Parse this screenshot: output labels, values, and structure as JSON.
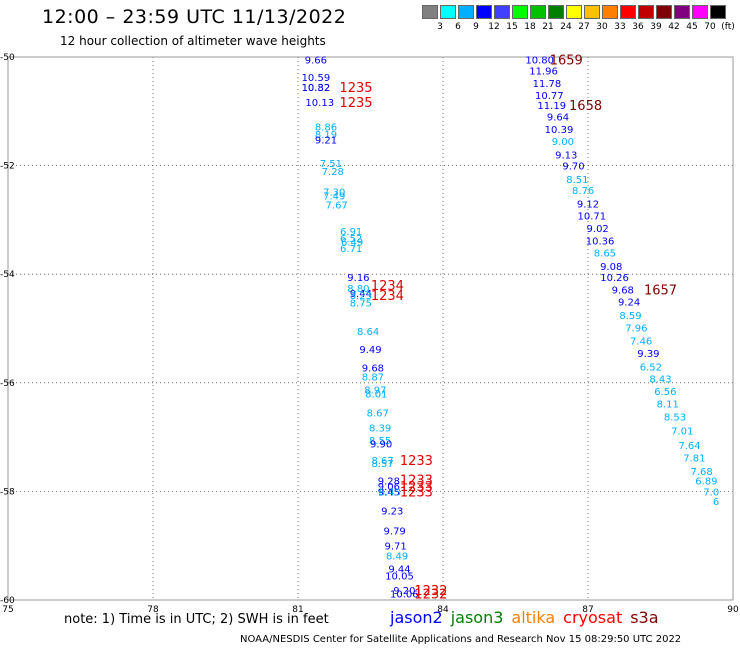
{
  "header": {
    "title": "12:00 – 23:59 UTC 11/13/2022",
    "subtitle": "12 hour collection of altimeter wave heights"
  },
  "colorbar": {
    "unit": "(ft)",
    "colors": [
      "#808080",
      "#00ffff",
      "#00b0ff",
      "#0000ff",
      "#4040ff",
      "#00ff00",
      "#00c000",
      "#008000",
      "#ffff00",
      "#ffc000",
      "#ff8000",
      "#ff0000",
      "#c00000",
      "#800000",
      "#800080",
      "#ff00ff",
      "#000000"
    ],
    "labels": [
      "3",
      "6",
      "9",
      "12",
      "15",
      "18",
      "21",
      "24",
      "27",
      "30",
      "33",
      "36",
      "39",
      "42",
      "45",
      "70"
    ]
  },
  "axes": {
    "x_ticks": [
      "75",
      "78",
      "81",
      "84",
      "87",
      "90"
    ],
    "y_ticks": [
      "-50",
      "-52",
      "-54",
      "-56",
      "-58",
      "-60"
    ]
  },
  "observations": [
    {
      "text": "9.66",
      "lon": 81.37,
      "lat": -50.05,
      "c": "#0000ff"
    },
    {
      "text": "10.59",
      "lon": 81.37,
      "lat": -50.37,
      "c": "#0000ff"
    },
    {
      "text": "10.32",
      "lon": 81.37,
      "lat": -50.55,
      "c": "#0000ff"
    },
    {
      "text": "10.82",
      "lon": 81.37,
      "lat": -50.55,
      "c": "#0000ff"
    },
    {
      "text": "10.13",
      "lon": 81.45,
      "lat": -50.83,
      "c": "#0000ff"
    },
    {
      "text": "8.86",
      "lon": 81.58,
      "lat": -51.28,
      "c": "#00b0ff"
    },
    {
      "text": "8.19",
      "lon": 81.58,
      "lat": -51.42,
      "c": "#00b0ff"
    },
    {
      "text": "9.21",
      "lon": 81.58,
      "lat": -51.52,
      "c": "#0000ff"
    },
    {
      "text": "7.51",
      "lon": 81.68,
      "lat": -51.95,
      "c": "#00b0ff"
    },
    {
      "text": "7.28",
      "lon": 81.72,
      "lat": -52.1,
      "c": "#00b0ff"
    },
    {
      "text": "7.30",
      "lon": 81.75,
      "lat": -52.48,
      "c": "#00b0ff"
    },
    {
      "text": "7.49",
      "lon": 81.75,
      "lat": -52.55,
      "c": "#00b0ff"
    },
    {
      "text": "7.67",
      "lon": 81.8,
      "lat": -52.72,
      "c": "#00b0ff"
    },
    {
      "text": "6.91",
      "lon": 82.1,
      "lat": -53.2,
      "c": "#00b0ff"
    },
    {
      "text": "6.52",
      "lon": 82.1,
      "lat": -53.33,
      "c": "#00b0ff"
    },
    {
      "text": "6.49",
      "lon": 82.12,
      "lat": -53.4,
      "c": "#00b0ff"
    },
    {
      "text": "6.71",
      "lon": 82.1,
      "lat": -53.52,
      "c": "#00b0ff"
    },
    {
      "text": "9.16",
      "lon": 82.25,
      "lat": -54.05,
      "c": "#0000ff"
    },
    {
      "text": "8.80",
      "lon": 82.25,
      "lat": -54.25,
      "c": "#00b0ff"
    },
    {
      "text": "9.44",
      "lon": 82.3,
      "lat": -54.35,
      "c": "#0000ff"
    },
    {
      "text": "8.23",
      "lon": 82.3,
      "lat": -54.38,
      "c": "#00b0ff"
    },
    {
      "text": "8.75",
      "lon": 82.3,
      "lat": -54.52,
      "c": "#00b0ff"
    },
    {
      "text": "8.64",
      "lon": 82.45,
      "lat": -55.05,
      "c": "#00b0ff"
    },
    {
      "text": "9.49",
      "lon": 82.5,
      "lat": -55.38,
      "c": "#0000ff"
    },
    {
      "text": "9.68",
      "lon": 82.55,
      "lat": -55.72,
      "c": "#0000ff"
    },
    {
      "text": "8.87",
      "lon": 82.55,
      "lat": -55.88,
      "c": "#00b0ff"
    },
    {
      "text": "8.97",
      "lon": 82.6,
      "lat": -56.12,
      "c": "#00b0ff"
    },
    {
      "text": "8.01",
      "lon": 82.62,
      "lat": -56.2,
      "c": "#00b0ff"
    },
    {
      "text": "8.67",
      "lon": 82.65,
      "lat": -56.55,
      "c": "#00b0ff"
    },
    {
      "text": "8.39",
      "lon": 82.7,
      "lat": -56.82,
      "c": "#00b0ff"
    },
    {
      "text": "8.55",
      "lon": 82.7,
      "lat": -57.05,
      "c": "#00b0ff"
    },
    {
      "text": "9.90",
      "lon": 82.72,
      "lat": -57.12,
      "c": "#0000ff"
    },
    {
      "text": "8.67",
      "lon": 82.75,
      "lat": -57.42,
      "c": "#00b0ff"
    },
    {
      "text": "8.57",
      "lon": 82.75,
      "lat": -57.48,
      "c": "#00b0ff"
    },
    {
      "text": "9.28",
      "lon": 82.88,
      "lat": -57.8,
      "c": "#0000ff"
    },
    {
      "text": "9.06",
      "lon": 82.88,
      "lat": -57.9,
      "c": "#0000ff"
    },
    {
      "text": "9.45",
      "lon": 82.88,
      "lat": -58.0,
      "c": "#0000ff"
    },
    {
      "text": "8.43",
      "lon": 82.9,
      "lat": -58.0,
      "c": "#00b0ff"
    },
    {
      "text": "9.23",
      "lon": 82.95,
      "lat": -58.35,
      "c": "#0000ff"
    },
    {
      "text": "9.79",
      "lon": 83.0,
      "lat": -58.72,
      "c": "#0000ff"
    },
    {
      "text": "9.71",
      "lon": 83.02,
      "lat": -59.0,
      "c": "#0000ff"
    },
    {
      "text": "8.49",
      "lon": 83.05,
      "lat": -59.18,
      "c": "#00b0ff"
    },
    {
      "text": "9.44",
      "lon": 83.1,
      "lat": -59.42,
      "c": "#0000ff"
    },
    {
      "text": "10.05",
      "lon": 83.1,
      "lat": -59.55,
      "c": "#0000ff"
    },
    {
      "text": "9.20",
      "lon": 83.2,
      "lat": -59.82,
      "c": "#0000ff"
    },
    {
      "text": "10.06",
      "lon": 83.2,
      "lat": -59.88,
      "c": "#0000ff"
    },
    {
      "text": "10.80",
      "lon": 86.0,
      "lat": -50.05,
      "c": "#0000ff"
    },
    {
      "text": "11.96",
      "lon": 86.08,
      "lat": -50.25,
      "c": "#0000ff"
    },
    {
      "text": "11.78",
      "lon": 86.15,
      "lat": -50.48,
      "c": "#0000ff"
    },
    {
      "text": "10.77",
      "lon": 86.2,
      "lat": -50.7,
      "c": "#0000ff"
    },
    {
      "text": "11.19",
      "lon": 86.25,
      "lat": -50.88,
      "c": "#0000ff"
    },
    {
      "text": "9.64",
      "lon": 86.38,
      "lat": -51.1,
      "c": "#0000ff"
    },
    {
      "text": "10.39",
      "lon": 86.4,
      "lat": -51.33,
      "c": "#0000ff"
    },
    {
      "text": "9.00",
      "lon": 86.48,
      "lat": -51.55,
      "c": "#00b0ff"
    },
    {
      "text": "9.13",
      "lon": 86.55,
      "lat": -51.8,
      "c": "#0000ff"
    },
    {
      "text": "9.70",
      "lon": 86.7,
      "lat": -52.0,
      "c": "#0000ff"
    },
    {
      "text": "8.51",
      "lon": 86.78,
      "lat": -52.25,
      "c": "#00b0ff"
    },
    {
      "text": "8.76",
      "lon": 86.9,
      "lat": -52.45,
      "c": "#00b0ff"
    },
    {
      "text": "9.12",
      "lon": 87.0,
      "lat": -52.7,
      "c": "#0000ff"
    },
    {
      "text": "10.71",
      "lon": 87.08,
      "lat": -52.92,
      "c": "#0000ff"
    },
    {
      "text": "9.02",
      "lon": 87.2,
      "lat": -53.15,
      "c": "#0000ff"
    },
    {
      "text": "10.36",
      "lon": 87.25,
      "lat": -53.38,
      "c": "#0000ff"
    },
    {
      "text": "8.65",
      "lon": 87.35,
      "lat": -53.6,
      "c": "#00b0ff"
    },
    {
      "text": "9.08",
      "lon": 87.48,
      "lat": -53.85,
      "c": "#0000ff"
    },
    {
      "text": "10.26",
      "lon": 87.55,
      "lat": -54.05,
      "c": "#0000ff"
    },
    {
      "text": "9.68",
      "lon": 87.72,
      "lat": -54.28,
      "c": "#0000ff"
    },
    {
      "text": "9.24",
      "lon": 87.85,
      "lat": -54.5,
      "c": "#0000ff"
    },
    {
      "text": "8.59",
      "lon": 87.88,
      "lat": -54.75,
      "c": "#00b0ff"
    },
    {
      "text": "7.96",
      "lon": 88.0,
      "lat": -54.98,
      "c": "#00b0ff"
    },
    {
      "text": "7.46",
      "lon": 88.1,
      "lat": -55.22,
      "c": "#00b0ff"
    },
    {
      "text": "9.39",
      "lon": 88.25,
      "lat": -55.45,
      "c": "#0000ff"
    },
    {
      "text": "6.52",
      "lon": 88.3,
      "lat": -55.7,
      "c": "#00b0ff"
    },
    {
      "text": "8.43",
      "lon": 88.5,
      "lat": -55.92,
      "c": "#00b0ff"
    },
    {
      "text": "6.56",
      "lon": 88.6,
      "lat": -56.15,
      "c": "#00b0ff"
    },
    {
      "text": "8.11",
      "lon": 88.65,
      "lat": -56.38,
      "c": "#00b0ff"
    },
    {
      "text": "8.53",
      "lon": 88.8,
      "lat": -56.62,
      "c": "#00b0ff"
    },
    {
      "text": "7.01",
      "lon": 88.95,
      "lat": -56.88,
      "c": "#00b0ff"
    },
    {
      "text": "7.64",
      "lon": 89.1,
      "lat": -57.15,
      "c": "#00b0ff"
    },
    {
      "text": "7.81",
      "lon": 89.2,
      "lat": -57.38,
      "c": "#00b0ff"
    },
    {
      "text": "7.68",
      "lon": 89.35,
      "lat": -57.62,
      "c": "#00b0ff"
    },
    {
      "text": "6.89",
      "lon": 89.45,
      "lat": -57.8,
      "c": "#00b0ff"
    },
    {
      "text": "7.0",
      "lon": 89.55,
      "lat": -58.0,
      "c": "#00b0ff"
    },
    {
      "text": "6",
      "lon": 89.65,
      "lat": -58.18,
      "c": "#00b0ff"
    }
  ],
  "pass_times": [
    {
      "text": "1235",
      "lon": 82.2,
      "lat": -50.55,
      "c": "#e00000"
    },
    {
      "text": "1235",
      "lon": 82.2,
      "lat": -50.83,
      "c": "#e00000"
    },
    {
      "text": "1234",
      "lon": 82.85,
      "lat": -54.2,
      "c": "#e00000"
    },
    {
      "text": "1234",
      "lon": 82.85,
      "lat": -54.38,
      "c": "#e00000"
    },
    {
      "text": "1233",
      "lon": 83.45,
      "lat": -57.42,
      "c": "#e00000"
    },
    {
      "text": "1233",
      "lon": 83.45,
      "lat": -57.78,
      "c": "#e00000"
    },
    {
      "text": "1233",
      "lon": 83.45,
      "lat": -57.9,
      "c": "#e00000"
    },
    {
      "text": "1233",
      "lon": 83.45,
      "lat": -58.0,
      "c": "#e00000"
    },
    {
      "text": "1232",
      "lon": 83.75,
      "lat": -59.82,
      "c": "#e00000"
    },
    {
      "text": "1232",
      "lon": 83.75,
      "lat": -59.88,
      "c": "#e00000"
    },
    {
      "text": "1659",
      "lon": 86.55,
      "lat": -50.05,
      "c": "#800000"
    },
    {
      "text": "1658",
      "lon": 86.95,
      "lat": -50.88,
      "c": "#800000"
    },
    {
      "text": "1657",
      "lon": 88.5,
      "lat": -54.28,
      "c": "#800000"
    }
  ],
  "footer": {
    "note": "note: 1) Time is in UTC; 2) SWH is in feet",
    "legend": [
      {
        "label": "jason2",
        "color": "#0000ff"
      },
      {
        "label": "jason3",
        "color": "#008000"
      },
      {
        "label": "altika",
        "color": "#ff8000"
      },
      {
        "label": "cryosat",
        "color": "#ff0000"
      },
      {
        "label": "s3a",
        "color": "#800000"
      }
    ],
    "credit": "NOAA/NESDIS Center for Satellite Applications and Research    Nov 15 08:29:50 UTC 2022"
  }
}
